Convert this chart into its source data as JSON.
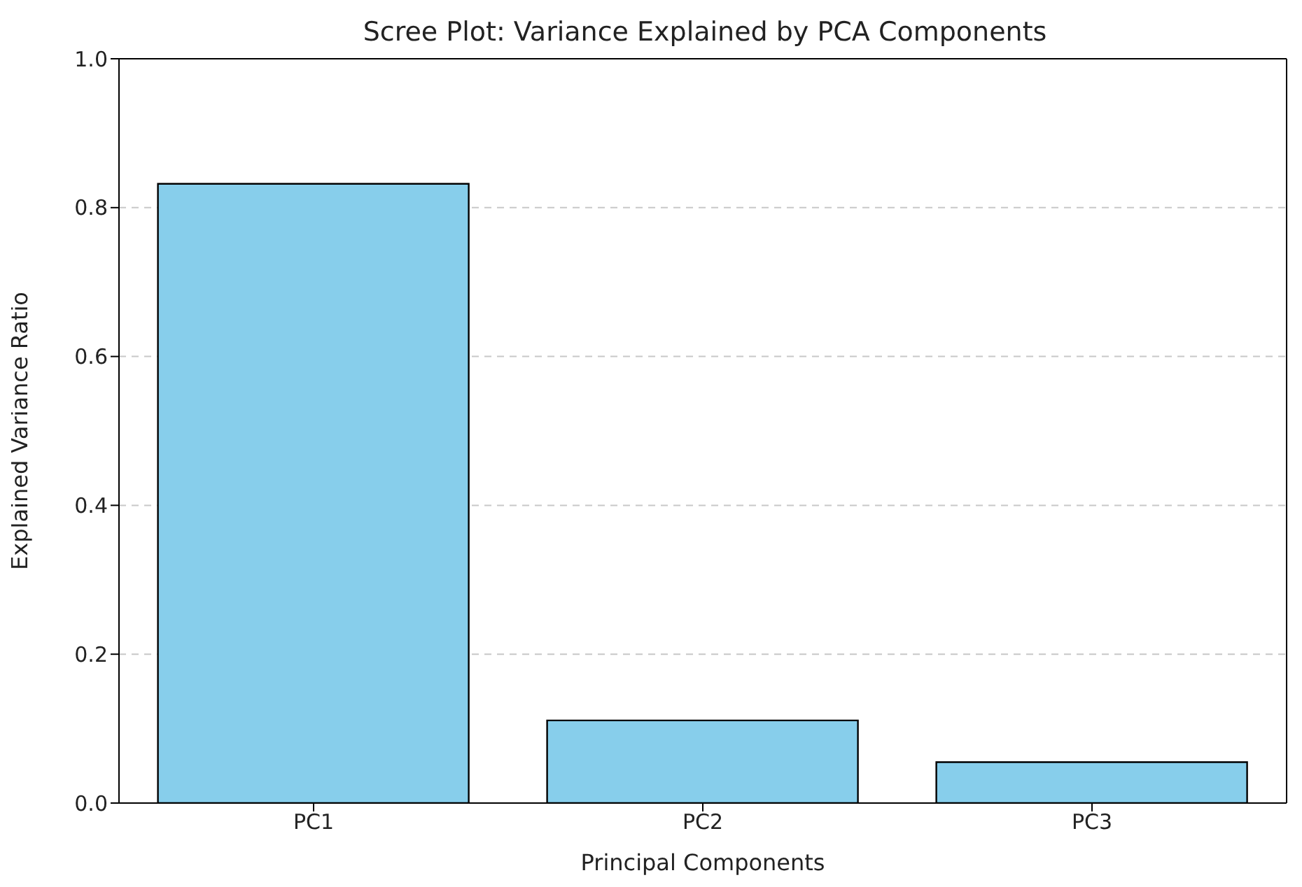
{
  "chart_data": {
    "type": "bar",
    "title": "Scree Plot: Variance Explained by PCA Components",
    "xlabel": "Principal Components",
    "ylabel": "Explained Variance Ratio",
    "categories": [
      "PC1",
      "PC2",
      "PC3"
    ],
    "values": [
      0.832,
      0.111,
      0.055
    ],
    "color": "#87ceeb",
    "ylim": [
      0,
      1
    ],
    "yticks": [
      {
        "value": 0,
        "label": "0.0"
      },
      {
        "value": 0.2,
        "label": "0.2"
      },
      {
        "value": 0.4,
        "label": "0.4"
      },
      {
        "value": 0.6,
        "label": "0.6"
      },
      {
        "value": 0.8,
        "label": "0.8"
      },
      {
        "value": 1,
        "label": "1.0"
      }
    ],
    "grid": "y"
  }
}
